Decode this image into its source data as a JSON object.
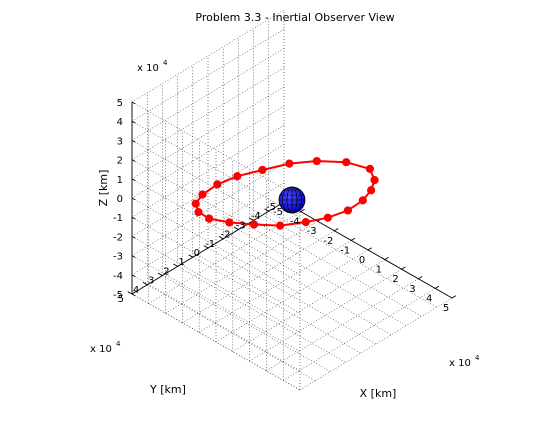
{
  "chart_data": {
    "type": "scatter",
    "title": "Problem 3.3 - Inertial Observer View",
    "xlabel": "X [km]",
    "ylabel": "Y [km]",
    "zlabel": "Z [km]",
    "exponent_label": {
      "base": "x 10",
      "power": "4"
    },
    "xlim": [
      -5,
      5
    ],
    "ylim": [
      -5,
      5
    ],
    "zlim": [
      -5,
      5
    ],
    "x_ticks": [
      "-5",
      "-4",
      "-3",
      "-2",
      "-1",
      "0",
      "1",
      "2",
      "3",
      "4",
      "5"
    ],
    "y_ticks": [
      "5",
      "4",
      "3",
      "2",
      "1",
      "0",
      "-1",
      "-2",
      "-3",
      "-4",
      "-5"
    ],
    "z_ticks": [
      "5",
      "4",
      "3",
      "2",
      "1",
      "0",
      "-1",
      "-2",
      "-3",
      "-4",
      "-5"
    ],
    "grid": true,
    "view": "3d-isometric",
    "series": [
      {
        "color": "#ff0000",
        "marker": "filled-circle",
        "values": [
          {
            "x": 1.2,
            "y": -3.8,
            "z": 0.4
          },
          {
            "x": 2.2,
            "y": -3.0,
            "z": 0.7
          },
          {
            "x": 2.9,
            "y": -2.0,
            "z": 1.0
          },
          {
            "x": 3.4,
            "y": -0.9,
            "z": 1.25
          },
          {
            "x": 3.6,
            "y": 0.3,
            "z": 1.4
          },
          {
            "x": 3.4,
            "y": 1.4,
            "z": 1.45
          },
          {
            "x": 2.9,
            "y": 2.3,
            "z": 1.4
          },
          {
            "x": 2.1,
            "y": 3.1,
            "z": 1.2
          },
          {
            "x": 1.0,
            "y": 3.6,
            "z": 0.95
          },
          {
            "x": -0.2,
            "y": 3.9,
            "z": 0.6
          },
          {
            "x": -1.4,
            "y": 3.9,
            "z": 0.2
          },
          {
            "x": -2.4,
            "y": 3.5,
            "z": -0.15
          },
          {
            "x": -3.2,
            "y": 2.8,
            "z": -0.45
          },
          {
            "x": -3.7,
            "y": 1.8,
            "z": -0.7
          },
          {
            "x": -3.9,
            "y": 0.6,
            "z": -0.85
          },
          {
            "x": -3.8,
            "y": -0.6,
            "z": -0.95
          },
          {
            "x": -3.3,
            "y": -1.7,
            "z": -0.9
          },
          {
            "x": -2.6,
            "y": -2.7,
            "z": -0.7
          },
          {
            "x": -1.6,
            "y": -3.4,
            "z": -0.4
          },
          {
            "x": -0.3,
            "y": -3.9,
            "z": -0.05
          }
        ]
      }
    ],
    "central_body": {
      "shape": "sphere",
      "color": "#0000cc",
      "center": {
        "x": 0,
        "y": 0,
        "z": 0
      }
    }
  }
}
